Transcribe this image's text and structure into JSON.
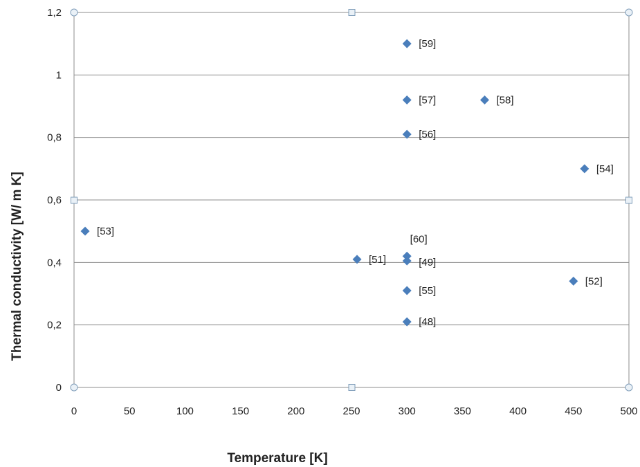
{
  "chart_data": {
    "type": "scatter",
    "title": "",
    "xlabel": "Temperature [K]",
    "ylabel": "Thermal conductivity  [W/ m K]",
    "xlim": [
      0,
      500
    ],
    "ylim": [
      0,
      1.2
    ],
    "x_ticks": [
      "0",
      "50",
      "100",
      "150",
      "200",
      "250",
      "300",
      "350",
      "400",
      "450",
      "500"
    ],
    "y_ticks": [
      "0",
      "0,2",
      "0,4",
      "0,6",
      "0,8",
      "1",
      "1,2"
    ],
    "grid": "horizontal",
    "marker": "diamond",
    "marker_color": "#4a7ebb",
    "points": [
      {
        "x": 300,
        "y": 1.1,
        "label": "[59]"
      },
      {
        "x": 300,
        "y": 0.92,
        "label": "[57]"
      },
      {
        "x": 370,
        "y": 0.92,
        "label": "[58]"
      },
      {
        "x": 300,
        "y": 0.81,
        "label": "[56]"
      },
      {
        "x": 460,
        "y": 0.7,
        "label": "[54]"
      },
      {
        "x": 10,
        "y": 0.5,
        "label": "[53]"
      },
      {
        "x": 300,
        "y": 0.42,
        "label": "[60]"
      },
      {
        "x": 255,
        "y": 0.41,
        "label": "[51]"
      },
      {
        "x": 300,
        "y": 0.405,
        "label": "[49]"
      },
      {
        "x": 450,
        "y": 0.34,
        "label": "[52]"
      },
      {
        "x": 300,
        "y": 0.31,
        "label": "[55]"
      },
      {
        "x": 300,
        "y": 0.21,
        "label": "[48]"
      }
    ]
  }
}
